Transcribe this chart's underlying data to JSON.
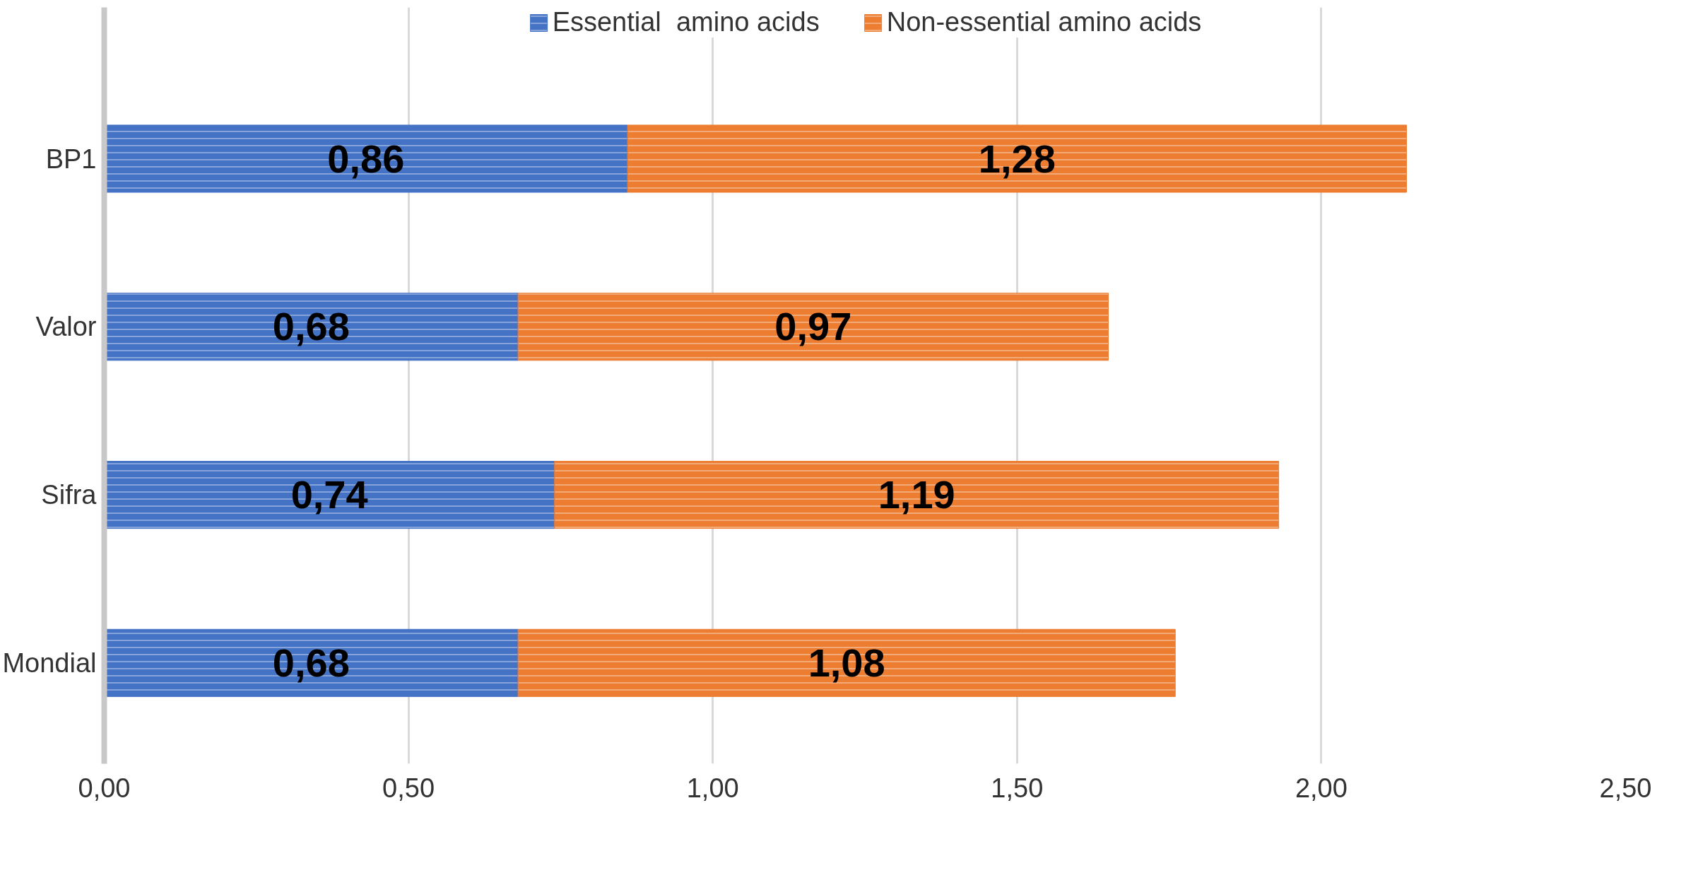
{
  "chart_data": {
    "type": "bar",
    "orientation": "horizontal",
    "stacked": true,
    "categories": [
      "BP1",
      "Valor",
      "Sifra",
      "Mondial"
    ],
    "series": [
      {
        "name": "Essential  amino acids",
        "color": "#4472c4",
        "values": [
          0.86,
          0.68,
          0.74,
          0.68
        ],
        "value_labels": [
          "0,86",
          "0,68",
          "0,74",
          "0,68"
        ]
      },
      {
        "name": "Non-essential amino acids",
        "color": "#ed7d31",
        "values": [
          1.28,
          0.97,
          1.19,
          1.08
        ],
        "value_labels": [
          "1,28",
          "0,97",
          "1,19",
          "1,08"
        ]
      }
    ],
    "xlim": [
      0,
      2.5
    ],
    "xticks": [
      {
        "value": 0,
        "label": "0,00"
      },
      {
        "value": 0.5,
        "label": "0,50"
      },
      {
        "value": 1,
        "label": "1,00"
      },
      {
        "value": 1.5,
        "label": "1,50"
      },
      {
        "value": 2,
        "label": "2,00"
      },
      {
        "value": 2.5,
        "label": "2,50"
      }
    ],
    "grid": "x",
    "legend": "top"
  }
}
